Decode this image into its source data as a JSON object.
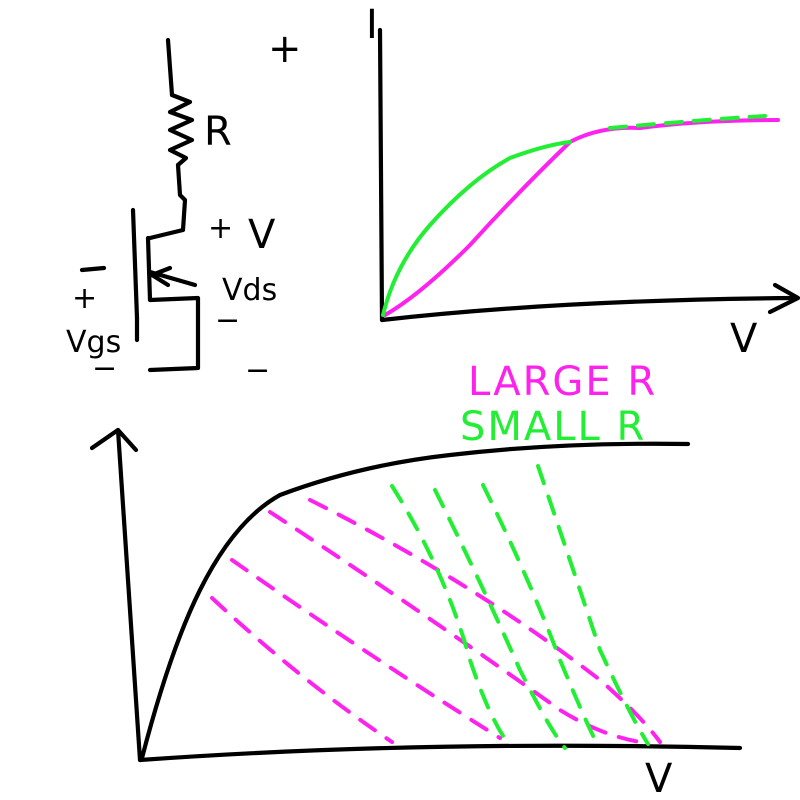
{
  "colors": {
    "ink": "#000000",
    "large_r": "#ff22ee",
    "small_r": "#22ee33"
  },
  "circuit": {
    "resistor_label": "R",
    "supply_plus": "+",
    "v_label": "V",
    "vds_plus": "+",
    "vds_label": "Vds",
    "vds_minus": "−",
    "vgs_plus": "+",
    "vgs_label": "Vgs",
    "vgs_minus": "−",
    "ground_minus": "−"
  },
  "iv_plot": {
    "y_axis_label": "I",
    "x_axis_label": "V"
  },
  "load_line_plot": {
    "legend_large": "LARGE R",
    "legend_small": "SMALL R",
    "x_axis_label": "V"
  }
}
